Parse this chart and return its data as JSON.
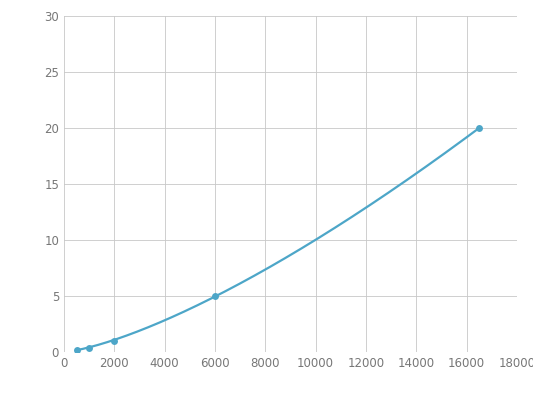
{
  "x_points": [
    500,
    1000,
    2000,
    6000,
    16500
  ],
  "y_points": [
    0.2,
    0.35,
    1.0,
    5.0,
    20.0
  ],
  "line_color": "#4da6c8",
  "marker_color": "#4da6c8",
  "marker_size": 5,
  "line_width": 1.6,
  "xlim": [
    0,
    18000
  ],
  "ylim": [
    0,
    30
  ],
  "xticks": [
    0,
    2000,
    4000,
    6000,
    8000,
    10000,
    12000,
    14000,
    16000,
    18000
  ],
  "yticks": [
    0,
    5,
    10,
    15,
    20,
    25,
    30
  ],
  "grid_color": "#c8c8c8",
  "background_color": "#ffffff",
  "tick_label_color": "#777777",
  "tick_label_fontsize": 8.5
}
